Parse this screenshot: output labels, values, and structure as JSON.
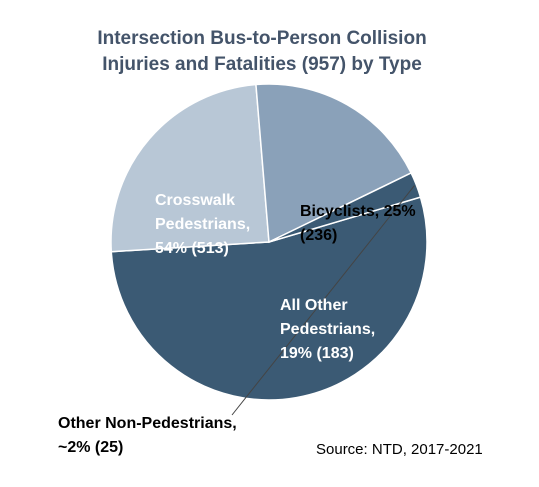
{
  "chart_data": {
    "type": "pie",
    "title_lines": [
      "Intersection Bus-to-Person Collision",
      "Injuries and Fatalities (957) by Type"
    ],
    "source": "Source: NTD, 2017-2021",
    "slices": [
      {
        "name": "Crosswalk Pedestrians",
        "value": 513,
        "percent_label": "54%",
        "color": "#3b5a74",
        "label_color": "#ffffff",
        "label_lines": [
          "Crosswalk",
          "Pedestrians,",
          "54% (513)"
        ]
      },
      {
        "name": "Bicyclists",
        "value": 236,
        "percent_label": "25%",
        "color": "#b8c7d6",
        "label_color": "#000000",
        "label_lines": [
          "Bicyclists, 25%",
          "(236)"
        ]
      },
      {
        "name": "All Other Pedestrians",
        "value": 183,
        "percent_label": "19%",
        "color": "#8aa1b9",
        "label_color": "#ffffff",
        "label_lines": [
          "All Other",
          "Pedestrians,",
          "19% (183)"
        ]
      },
      {
        "name": "Other Non-Pedestrians",
        "value": 25,
        "percent_label": "~2%",
        "color": "#3b5a74",
        "label_color": "#000000",
        "label_lines": [
          "Other Non-Pedestrians,",
          "~2% (25)"
        ]
      }
    ]
  }
}
